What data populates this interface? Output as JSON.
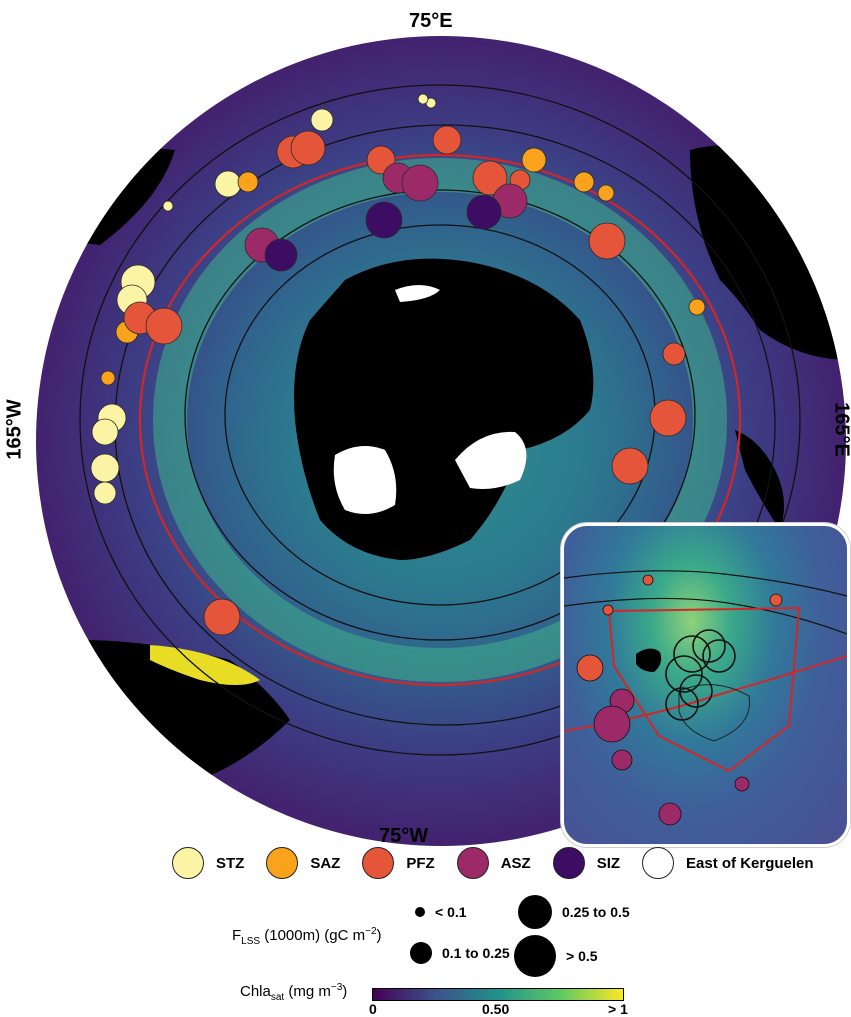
{
  "labels": {
    "top": "75°E",
    "bottom": "75°W",
    "left": "165°W",
    "right": "165°E"
  },
  "zones": [
    {
      "name": "STZ",
      "color": "#fbf4a4"
    },
    {
      "name": "SAZ",
      "color": "#f9a21b"
    },
    {
      "name": "PFZ",
      "color": "#e5553a"
    },
    {
      "name": "ASZ",
      "color": "#9c2a68"
    },
    {
      "name": "SIZ",
      "color": "#3c0d63"
    },
    {
      "name": "East of Kerguelen",
      "color": "#ffffff"
    }
  ],
  "flux_legend": {
    "title_main": "F",
    "title_sub": "LSS",
    "title_rest": "(1000m) (gC m",
    "title_exp": "−2",
    "title_end": ")",
    "classes": [
      {
        "label": "< 0.1"
      },
      {
        "label": "0.1 to 0.25"
      },
      {
        "label": "0.25 to 0.5"
      },
      {
        "label": "> 0.5"
      }
    ]
  },
  "colorbar": {
    "title_main": "Chla",
    "title_sub": "sat",
    "title_rest": "(mg m",
    "title_exp": "−3",
    "title_end": ")",
    "ticks": [
      "0",
      "0.50",
      "> 1"
    ]
  }
}
